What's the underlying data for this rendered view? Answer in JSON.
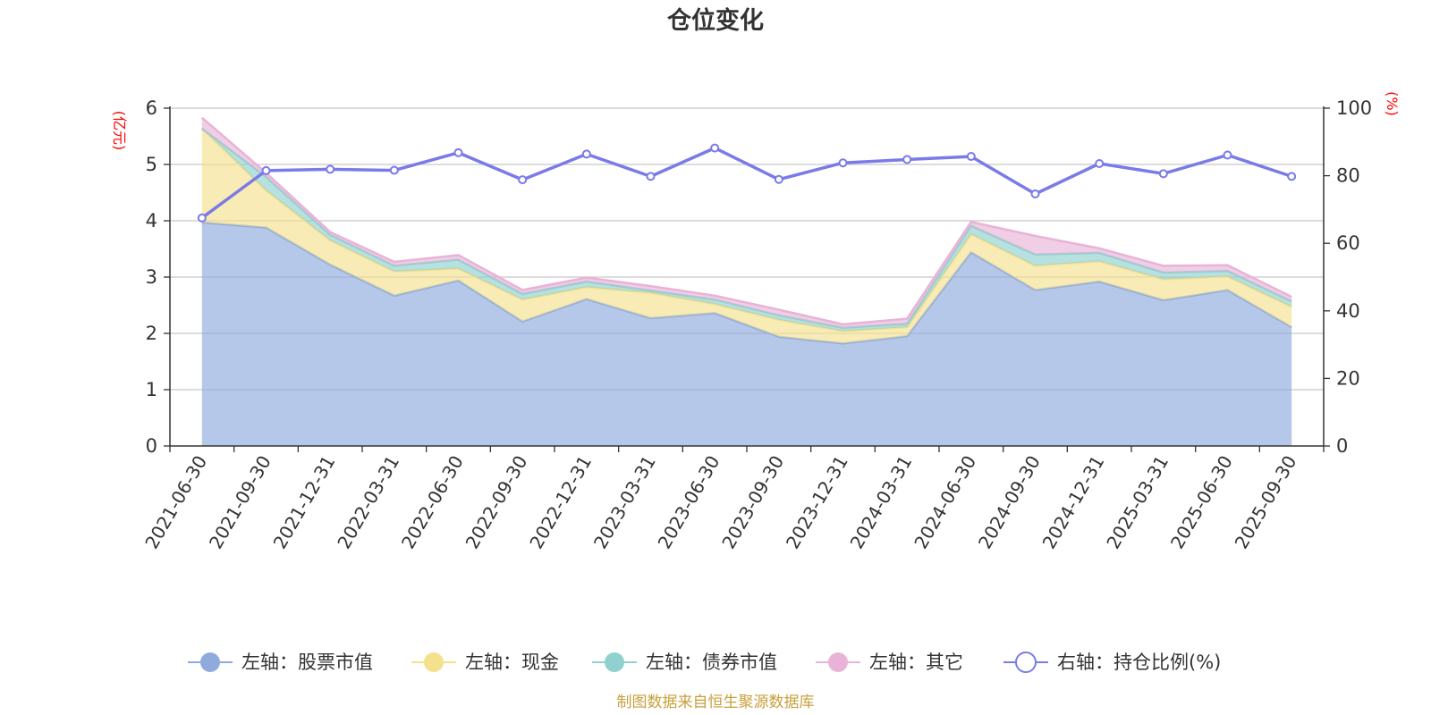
{
  "chart_data": {
    "type": "area",
    "title": "仓位变化",
    "left_axis_unit": "(亿元)",
    "right_axis_unit": "(%)",
    "left_ylim": [
      0,
      6
    ],
    "left_ticks": [
      "0",
      "1",
      "2",
      "3",
      "4",
      "5",
      "6"
    ],
    "right_ylim": [
      0,
      100
    ],
    "right_ticks": [
      "0",
      "20",
      "40",
      "60",
      "80",
      "100"
    ],
    "categories": [
      "2021-06-30",
      "2021-09-30",
      "2021-12-31",
      "2022-03-31",
      "2022-06-30",
      "2022-09-30",
      "2022-12-31",
      "2023-03-31",
      "2023-06-30",
      "2023-09-30",
      "2023-12-31",
      "2024-03-31",
      "2024-06-30",
      "2024-09-30",
      "2024-12-31",
      "2025-03-31",
      "2025-06-30",
      "2025-09-30"
    ],
    "series": [
      {
        "name": "左轴：股票市值",
        "axis": "left",
        "stacked": true,
        "color": "#8fabdd",
        "values": [
          3.97,
          3.88,
          3.22,
          2.67,
          2.94,
          2.21,
          2.61,
          2.27,
          2.36,
          1.94,
          1.82,
          1.95,
          3.44,
          2.77,
          2.92,
          2.59,
          2.77,
          2.11
        ]
      },
      {
        "name": "左轴：现金",
        "axis": "left",
        "stacked": true,
        "color": "#f5e08e",
        "values": [
          1.67,
          0.66,
          0.43,
          0.43,
          0.21,
          0.39,
          0.21,
          0.45,
          0.16,
          0.3,
          0.22,
          0.16,
          0.32,
          0.43,
          0.36,
          0.37,
          0.24,
          0.36
        ]
      },
      {
        "name": "左轴：债券市值",
        "axis": "left",
        "stacked": true,
        "color": "#8fd1cf",
        "values": [
          0.0,
          0.24,
          0.1,
          0.1,
          0.16,
          0.1,
          0.1,
          0.04,
          0.08,
          0.08,
          0.06,
          0.06,
          0.15,
          0.2,
          0.15,
          0.12,
          0.1,
          0.1
        ]
      },
      {
        "name": "左轴：其它",
        "axis": "left",
        "stacked": true,
        "color": "#e8b3d7",
        "values": [
          0.19,
          0.07,
          0.05,
          0.07,
          0.08,
          0.07,
          0.07,
          0.08,
          0.07,
          0.1,
          0.06,
          0.09,
          0.07,
          0.33,
          0.08,
          0.12,
          0.1,
          0.08
        ]
      },
      {
        "name": "右轴：持仓比例(%)",
        "axis": "right",
        "type": "line",
        "color": "#7a7ae8",
        "values": [
          67.5,
          81.5,
          81.9,
          81.6,
          86.8,
          78.8,
          86.4,
          79.8,
          88.2,
          78.9,
          83.8,
          84.8,
          85.7,
          74.6,
          83.6,
          80.6,
          86.1,
          79.8
        ]
      }
    ],
    "legend_position": "bottom-center",
    "grid": true
  },
  "footer": {
    "source": "制图数据来自恒生聚源数据库"
  }
}
